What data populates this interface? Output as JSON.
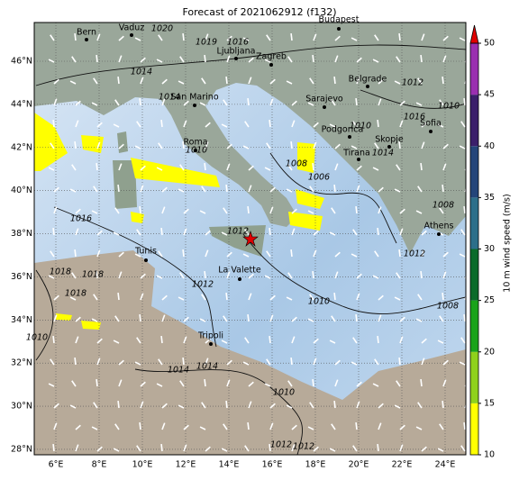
{
  "title": "Forecast of 2021062912 (f132)",
  "map": {
    "lon_ticks": [
      {
        "value": 6,
        "label": "6°E"
      },
      {
        "value": 8,
        "label": "8°E"
      },
      {
        "value": 10,
        "label": "10°E"
      },
      {
        "value": 12,
        "label": "12°E"
      },
      {
        "value": 14,
        "label": "14°E"
      },
      {
        "value": 16,
        "label": "16°E"
      },
      {
        "value": 18,
        "label": "18°E"
      },
      {
        "value": 20,
        "label": "20°E"
      },
      {
        "value": 22,
        "label": "22°E"
      },
      {
        "value": 24,
        "label": "24°E"
      }
    ],
    "lat_ticks": [
      {
        "value": 28,
        "label": "28°N"
      },
      {
        "value": 30,
        "label": "30°N"
      },
      {
        "value": 32,
        "label": "32°N"
      },
      {
        "value": 34,
        "label": "34°N"
      },
      {
        "value": 36,
        "label": "36°N"
      },
      {
        "value": 38,
        "label": "38°N"
      },
      {
        "value": 40,
        "label": "40°N"
      },
      {
        "value": 42,
        "label": "42°N"
      },
      {
        "value": 44,
        "label": "44°N"
      },
      {
        "value": 46,
        "label": "46°N"
      }
    ],
    "cities": [
      "Bern",
      "Vaduz",
      "Budapest",
      "Ljubljana",
      "Zagreb",
      "Belgrade",
      "San Marino",
      "Sarajevo",
      "Podgorica",
      "Sofia",
      "Roma",
      "Skopje",
      "Tirana",
      "Tunis",
      "La Valette",
      "Athens",
      "Tripoli"
    ],
    "isobar_labels": [
      "1020",
      "1019",
      "1016",
      "1014",
      "1012",
      "1010",
      "1014",
      "1010",
      "1008",
      "1006",
      "1016",
      "1012",
      "1012",
      "1010",
      "1018",
      "1018",
      "1018",
      "1014",
      "1014",
      "1010",
      "1012",
      "1012",
      "1010",
      "1008",
      "1012",
      "1008",
      "1014",
      "1016",
      "1010"
    ]
  },
  "colorbar": {
    "label": "10 m wind speed (m/s)",
    "ticks": [
      10,
      15,
      20,
      25,
      30,
      35,
      40,
      45,
      50
    ],
    "colors": [
      "#ffff00",
      "#8fd11c",
      "#1aa31a",
      "#0b6b2a",
      "#2d6f8a",
      "#24457a",
      "#3b1f6b",
      "#9a2fb0"
    ],
    "extend_color": "#e00000"
  }
}
